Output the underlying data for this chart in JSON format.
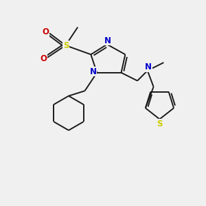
{
  "background_color": "#f0f0f0",
  "bond_color": "#1a1a1a",
  "N_color": "#0000cc",
  "O_color": "#cc0000",
  "S_color": "#cccc00",
  "figsize": [
    3.0,
    3.0
  ],
  "dpi": 100,
  "xlim": [
    0,
    10
  ],
  "ylim": [
    0,
    10
  ]
}
